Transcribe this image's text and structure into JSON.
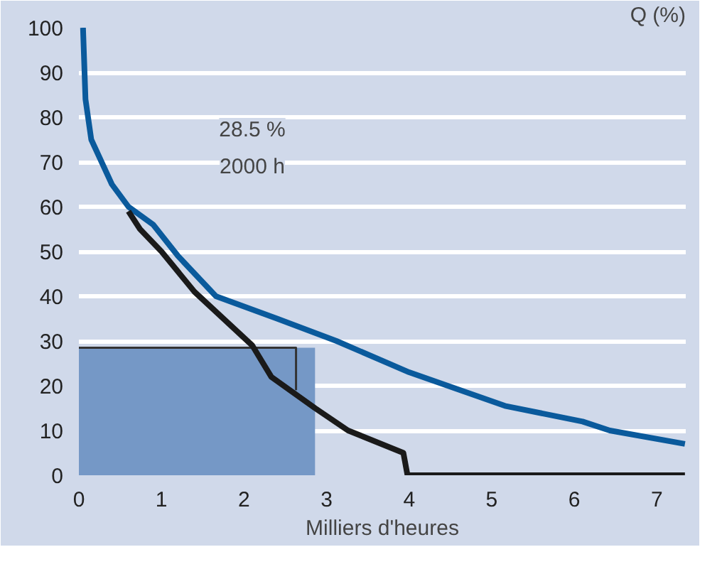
{
  "chart_data": {
    "type": "line",
    "xlabel": "Milliers d'heures",
    "ylabel": "Q (%)",
    "annotations": [
      "28.5 %",
      "2000 h"
    ],
    "xlim": [
      0,
      7.35
    ],
    "ylim": [
      0,
      100
    ],
    "xticks": [
      0,
      1,
      2,
      3,
      4,
      5,
      6,
      7
    ],
    "yticks": [
      0,
      10,
      20,
      30,
      40,
      50,
      60,
      70,
      80,
      90,
      100
    ],
    "grid": "y",
    "series": [
      {
        "type": "area",
        "color": "#7598c6",
        "x": [
          0,
          2.86
        ],
        "values": [
          28.5,
          28.5
        ]
      },
      {
        "type": "line",
        "color": "#333333",
        "x": [
          0,
          2.63,
          2.63
        ],
        "values": [
          28.5,
          28.5,
          19
        ]
      },
      {
        "color": "#0a5a9c",
        "x": [
          0.05,
          0.08,
          0.15,
          0.4,
          0.6,
          0.9,
          1.2,
          1.66,
          2.4,
          3.12,
          4.0,
          5.16,
          6.1,
          6.43,
          7.34
        ],
        "values": [
          100,
          84,
          75,
          65,
          60,
          56,
          49,
          40,
          35,
          30,
          23,
          15.5,
          12,
          10,
          7
        ]
      },
      {
        "color": "#1a1a1a",
        "x": [
          0.6,
          0.74,
          1.0,
          1.4,
          2.1,
          2.33,
          2.86,
          3.26,
          3.93,
          3.98,
          7.34
        ],
        "values": [
          59,
          55,
          50,
          41,
          29,
          22,
          15,
          10,
          5,
          0,
          0
        ]
      }
    ]
  }
}
